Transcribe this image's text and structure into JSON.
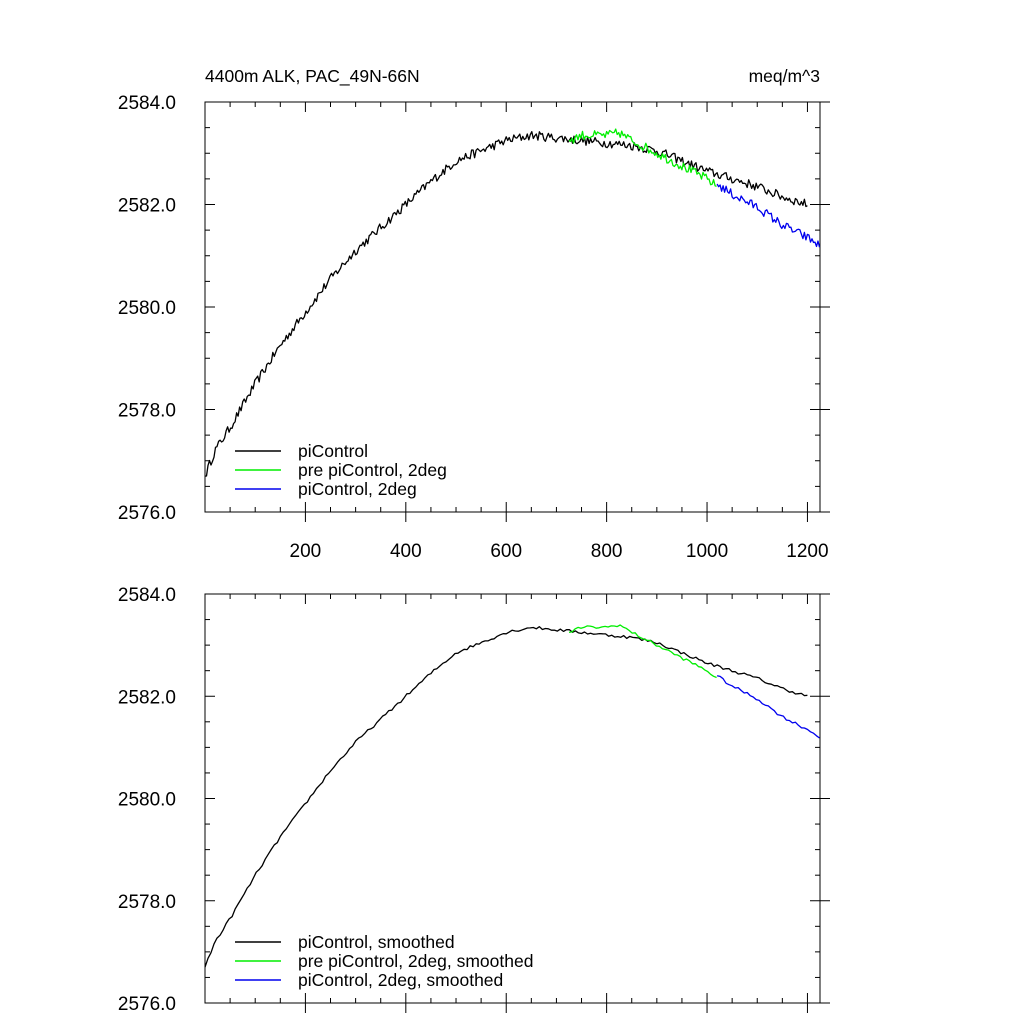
{
  "chart_data": [
    {
      "type": "line",
      "title_left": "4400m ALK, PAC_49N-66N",
      "title_right": "meq/m^3",
      "xlim": [
        0,
        1225
      ],
      "ylim": [
        2576.0,
        2584.0
      ],
      "x_ticks": [
        200,
        400,
        600,
        800,
        1000,
        1200
      ],
      "x_tick_labels": [
        "200",
        "400",
        "600",
        "800",
        "1000",
        "1200"
      ],
      "show_x_tick_labels": true,
      "y_ticks": [
        2576.0,
        2578.0,
        2580.0,
        2582.0,
        2584.0
      ],
      "y_tick_labels": [
        "2576.0",
        "2578.0",
        "2580.0",
        "2582.0",
        "2584.0"
      ],
      "grid": false,
      "legend_position": "bottom-left",
      "series": [
        {
          "name": "piControl",
          "color": "#000000",
          "noisy": true,
          "points": [
            [
              0,
              2576.7
            ],
            [
              20,
              2577.2
            ],
            [
              50,
              2577.65
            ],
            [
              100,
              2578.5
            ],
            [
              150,
              2579.25
            ],
            [
              200,
              2579.9
            ],
            [
              250,
              2580.55
            ],
            [
              300,
              2581.1
            ],
            [
              350,
              2581.55
            ],
            [
              400,
              2582.0
            ],
            [
              450,
              2582.45
            ],
            [
              500,
              2582.85
            ],
            [
              550,
              2583.05
            ],
            [
              600,
              2583.25
            ],
            [
              650,
              2583.35
            ],
            [
              700,
              2583.3
            ],
            [
              750,
              2583.25
            ],
            [
              800,
              2583.2
            ],
            [
              850,
              2583.15
            ],
            [
              900,
              2583.05
            ],
            [
              950,
              2582.85
            ],
            [
              1000,
              2582.65
            ],
            [
              1050,
              2582.5
            ],
            [
              1100,
              2582.35
            ],
            [
              1150,
              2582.15
            ],
            [
              1200,
              2582.0
            ]
          ]
        },
        {
          "name": "pre piControl, 2deg",
          "color": "#00ee00",
          "noisy": true,
          "points": [
            [
              725,
              2583.25
            ],
            [
              750,
              2583.35
            ],
            [
              800,
              2583.35
            ],
            [
              825,
              2583.4
            ],
            [
              850,
              2583.25
            ],
            [
              900,
              2583.0
            ],
            [
              950,
              2582.75
            ],
            [
              1000,
              2582.5
            ],
            [
              1020,
              2582.35
            ]
          ]
        },
        {
          "name": "piControl, 2deg",
          "color": "#0000ee",
          "noisy": true,
          "points": [
            [
              1020,
              2582.4
            ],
            [
              1050,
              2582.2
            ],
            [
              1100,
              2581.95
            ],
            [
              1150,
              2581.6
            ],
            [
              1200,
              2581.35
            ],
            [
              1225,
              2581.2
            ]
          ]
        }
      ]
    },
    {
      "type": "line",
      "xlim": [
        0,
        1225
      ],
      "ylim": [
        2576.0,
        2584.0
      ],
      "x_ticks": [
        200,
        400,
        600,
        800,
        1000,
        1200
      ],
      "show_x_tick_labels": false,
      "y_ticks": [
        2576.0,
        2578.0,
        2580.0,
        2582.0,
        2584.0
      ],
      "y_tick_labels": [
        "2576.0",
        "2578.0",
        "2580.0",
        "2582.0",
        "2584.0"
      ],
      "grid": false,
      "legend_position": "bottom-left",
      "series": [
        {
          "name": "piControl, smoothed",
          "color": "#000000",
          "noisy": false,
          "points": [
            [
              0,
              2576.7
            ],
            [
              20,
              2577.2
            ],
            [
              50,
              2577.65
            ],
            [
              100,
              2578.5
            ],
            [
              150,
              2579.25
            ],
            [
              200,
              2579.9
            ],
            [
              250,
              2580.55
            ],
            [
              300,
              2581.1
            ],
            [
              350,
              2581.55
            ],
            [
              400,
              2582.0
            ],
            [
              450,
              2582.45
            ],
            [
              500,
              2582.85
            ],
            [
              550,
              2583.05
            ],
            [
              600,
              2583.25
            ],
            [
              650,
              2583.35
            ],
            [
              700,
              2583.3
            ],
            [
              750,
              2583.25
            ],
            [
              800,
              2583.2
            ],
            [
              850,
              2583.15
            ],
            [
              900,
              2583.05
            ],
            [
              950,
              2582.85
            ],
            [
              1000,
              2582.65
            ],
            [
              1050,
              2582.5
            ],
            [
              1100,
              2582.35
            ],
            [
              1150,
              2582.15
            ],
            [
              1200,
              2582.0
            ]
          ]
        },
        {
          "name": "pre piControl, 2deg, smoothed",
          "color": "#00ee00",
          "noisy": false,
          "points": [
            [
              725,
              2583.25
            ],
            [
              750,
              2583.35
            ],
            [
              800,
              2583.35
            ],
            [
              825,
              2583.4
            ],
            [
              850,
              2583.25
            ],
            [
              900,
              2583.0
            ],
            [
              950,
              2582.75
            ],
            [
              1000,
              2582.5
            ],
            [
              1020,
              2582.35
            ]
          ]
        },
        {
          "name": "piControl, 2deg, smoothed",
          "color": "#0000ee",
          "noisy": false,
          "points": [
            [
              1020,
              2582.4
            ],
            [
              1050,
              2582.2
            ],
            [
              1100,
              2581.95
            ],
            [
              1150,
              2581.6
            ],
            [
              1200,
              2581.35
            ],
            [
              1225,
              2581.2
            ]
          ]
        }
      ]
    }
  ]
}
